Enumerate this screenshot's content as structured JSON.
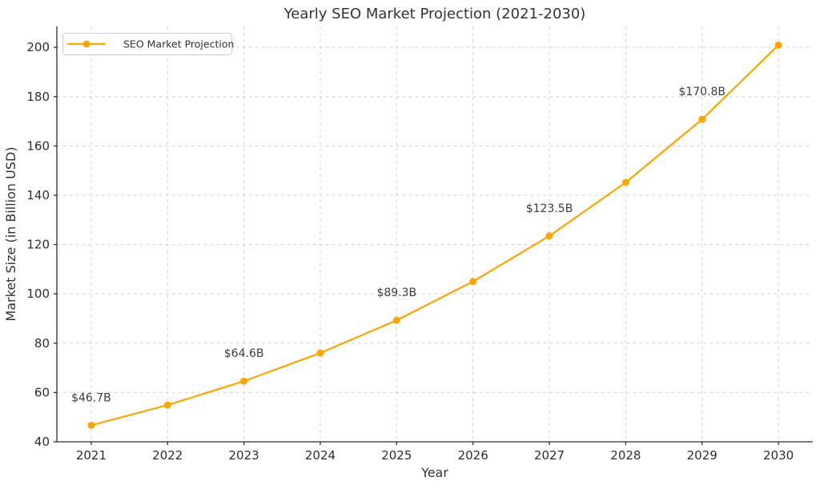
{
  "chart_data": {
    "type": "line",
    "title": "Yearly SEO Market Projection (2021-2030)",
    "xlabel": "Year",
    "ylabel": "Market Size (in Billion USD)",
    "x": [
      2021,
      2022,
      2023,
      2024,
      2025,
      2026,
      2027,
      2028,
      2029,
      2030
    ],
    "series": [
      {
        "name": "SEO Market Projection",
        "color": "#FFA500",
        "values": [
          46.7,
          54.9,
          64.6,
          76.0,
          89.3,
          105.0,
          123.5,
          145.2,
          170.8,
          200.9
        ]
      }
    ],
    "annotations": [
      {
        "x": 2021,
        "y": 46.7,
        "label": "$46.7B"
      },
      {
        "x": 2023,
        "y": 64.6,
        "label": "$64.6B"
      },
      {
        "x": 2025,
        "y": 89.3,
        "label": "$89.3B"
      },
      {
        "x": 2027,
        "y": 123.5,
        "label": "$123.5B"
      },
      {
        "x": 2029,
        "y": 170.8,
        "label": "$170.8B"
      }
    ],
    "yticks": [
      40,
      60,
      80,
      100,
      120,
      140,
      160,
      180,
      200
    ],
    "xlim": [
      2020.55,
      2030.45
    ],
    "ylim": [
      40,
      208.5
    ],
    "grid": true,
    "grid_style": "dashed",
    "legend": {
      "position": "upper left",
      "entries": [
        "SEO Market Projection"
      ]
    },
    "colors": {
      "line": "#FFA500",
      "grid": "#cfcfcf",
      "spine": "#2e2e2e",
      "text": "#333333",
      "background": "#ffffff"
    }
  }
}
